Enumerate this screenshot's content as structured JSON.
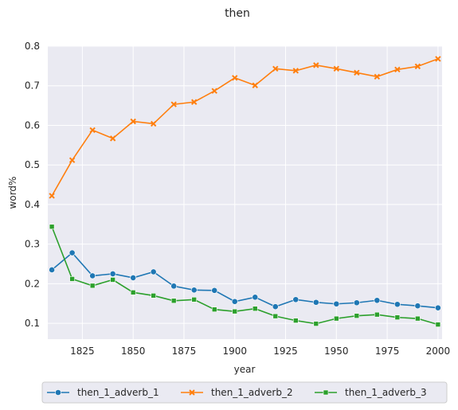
{
  "chart_data": {
    "type": "line",
    "title": "then",
    "xlabel": "year",
    "ylabel": "word%",
    "xlim": [
      1808,
      2002
    ],
    "ylim": [
      0.06,
      0.8
    ],
    "xticks": [
      1825,
      1850,
      1875,
      1900,
      1925,
      1950,
      1975,
      2000
    ],
    "yticks": [
      0.1,
      0.2,
      0.3,
      0.4,
      0.5,
      0.6,
      0.7,
      0.8
    ],
    "xtick_labels": [
      "1825",
      "1850",
      "1875",
      "1900",
      "1925",
      "1950",
      "1975",
      "2000"
    ],
    "ytick_labels": [
      "0.1",
      "0.2",
      "0.3",
      "0.4",
      "0.5",
      "0.6",
      "0.7",
      "0.8"
    ],
    "grid": true,
    "legend_position": "bottom-center",
    "x": [
      1810,
      1820,
      1830,
      1840,
      1850,
      1860,
      1870,
      1880,
      1890,
      1900,
      1910,
      1920,
      1930,
      1940,
      1950,
      1960,
      1970,
      1980,
      1990,
      2000
    ],
    "series": [
      {
        "name": "then_1_adverb_1",
        "color": "#1f77b4",
        "marker": "circle",
        "values": [
          0.235,
          0.278,
          0.22,
          0.225,
          0.215,
          0.23,
          0.194,
          0.184,
          0.183,
          0.155,
          0.166,
          0.142,
          0.16,
          0.153,
          0.149,
          0.152,
          0.158,
          0.148,
          0.144,
          0.139
        ]
      },
      {
        "name": "then_1_adverb_2",
        "color": "#ff7f0e",
        "marker": "x",
        "values": [
          0.422,
          0.512,
          0.588,
          0.567,
          0.61,
          0.604,
          0.653,
          0.659,
          0.687,
          0.72,
          0.701,
          0.743,
          0.738,
          0.752,
          0.743,
          0.733,
          0.723,
          0.741,
          0.749,
          0.768
        ]
      },
      {
        "name": "then_1_adverb_3",
        "color": "#2ca02c",
        "marker": "square",
        "values": [
          0.344,
          0.212,
          0.195,
          0.21,
          0.178,
          0.17,
          0.157,
          0.16,
          0.135,
          0.13,
          0.137,
          0.118,
          0.107,
          0.099,
          0.112,
          0.119,
          0.122,
          0.115,
          0.112,
          0.097
        ]
      }
    ]
  }
}
